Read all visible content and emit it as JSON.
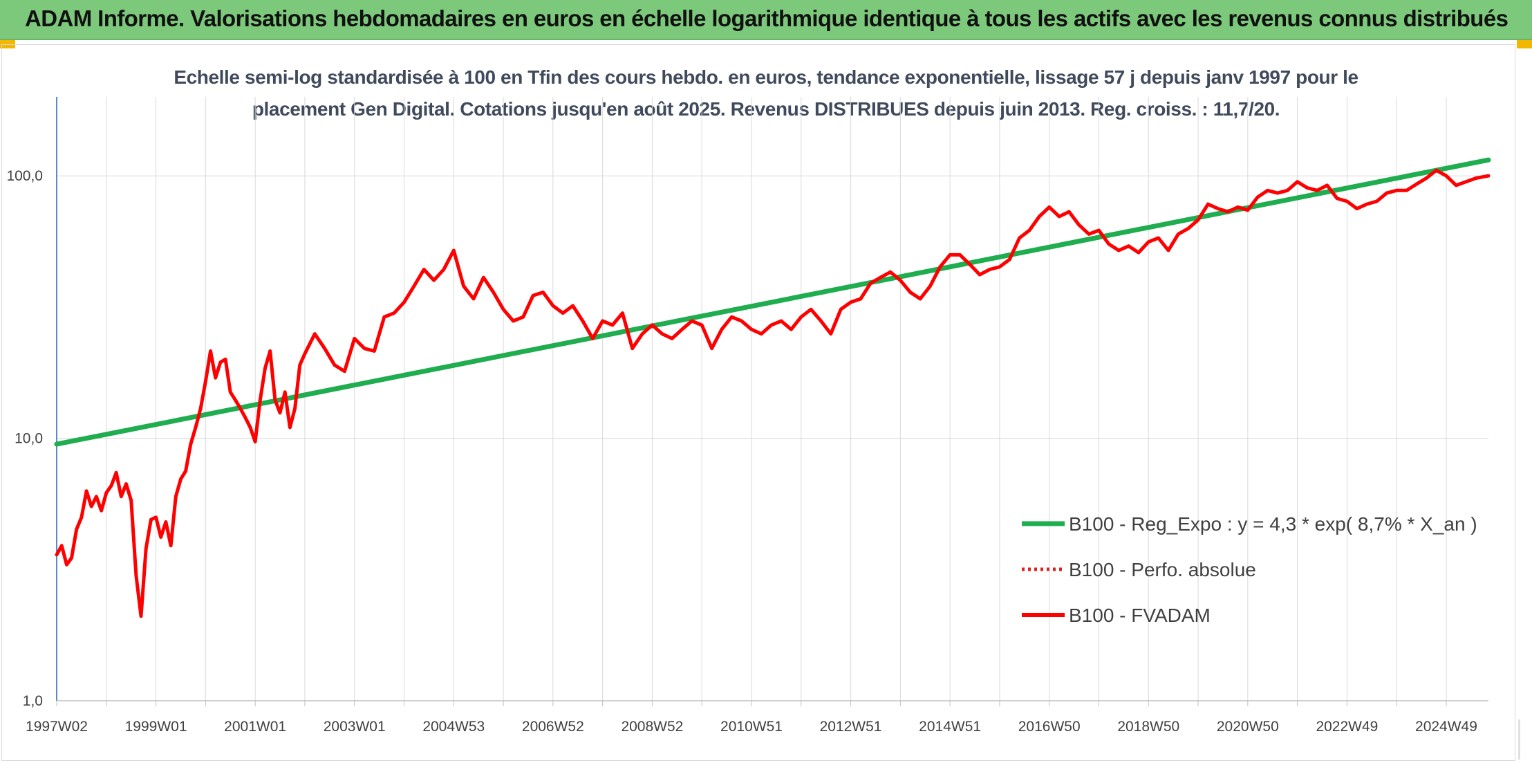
{
  "header": {
    "title": "ADAM Informe. Valorisations hebdomadaires en euros en échelle logarithmique identique à tous les actifs avec les revenus connus distribués"
  },
  "colors": {
    "header_bg": "#7dc97c",
    "regression": "#1fad4f",
    "fvadam": "#ff0000",
    "perfo": "#e0201e",
    "grid": "#d9d9d9",
    "axis": "#5b8ac7"
  },
  "chart_data": {
    "type": "line",
    "title_lines": [
      "Echelle semi-log standardisée à 100 en Tfin des cours hebdo. en euros, tendance exponentielle, lissage 57 j depuis janv 1997 pour le",
      "placement Gen Digital. Cotations jusqu'en août 2025. Revenus DISTRIBUES depuis juin 2013. Reg. croiss. : 11,7/20."
    ],
    "y_scale": "log",
    "ylim": [
      1,
      200
    ],
    "xlim": [
      1997.0,
      2025.85
    ],
    "y_ticks": [
      {
        "value": 1,
        "label": "1,0"
      },
      {
        "value": 10,
        "label": "10,0"
      },
      {
        "value": 100,
        "label": "100,0"
      }
    ],
    "x_ticks": [
      {
        "value": 1997.0,
        "label": "1997W02"
      },
      {
        "value": 1999.0,
        "label": "1999W01"
      },
      {
        "value": 2001.0,
        "label": "2001W01"
      },
      {
        "value": 2003.0,
        "label": "2003W01"
      },
      {
        "value": 2005.0,
        "label": "2004W53"
      },
      {
        "value": 2007.0,
        "label": "2006W52"
      },
      {
        "value": 2009.0,
        "label": "2008W52"
      },
      {
        "value": 2011.0,
        "label": "2010W51"
      },
      {
        "value": 2013.0,
        "label": "2012W51"
      },
      {
        "value": 2015.0,
        "label": "2014W51"
      },
      {
        "value": 2017.0,
        "label": "2016W50"
      },
      {
        "value": 2019.0,
        "label": "2018W50"
      },
      {
        "value": 2021.0,
        "label": "2020W50"
      },
      {
        "value": 2023.0,
        "label": "2022W49"
      },
      {
        "value": 2025.0,
        "label": "2024W49"
      }
    ],
    "legend_position": "right",
    "series": [
      {
        "name": "B100 - Reg_Expo : y = 4,3 * exp( 8,7% *  X_an )",
        "style": "solid-thick",
        "color": "#1fad4f",
        "x": [
          1997.0,
          2025.85
        ],
        "y": [
          9.5,
          115
        ]
      },
      {
        "name": "B100 - Perfo. absolue",
        "style": "dotted",
        "color": "#e0201e",
        "x": [],
        "y": []
      },
      {
        "name": "B100 - FVADAM",
        "style": "solid",
        "color": "#ff0000",
        "x": [
          1997.0,
          1997.1,
          1997.2,
          1997.3,
          1997.4,
          1997.5,
          1997.6,
          1997.7,
          1997.8,
          1997.9,
          1998.0,
          1998.1,
          1998.2,
          1998.3,
          1998.4,
          1998.5,
          1998.6,
          1998.7,
          1998.8,
          1998.9,
          1999.0,
          1999.1,
          1999.2,
          1999.3,
          1999.4,
          1999.5,
          1999.6,
          1999.7,
          1999.8,
          1999.9,
          2000.0,
          2000.1,
          2000.2,
          2000.3,
          2000.4,
          2000.5,
          2000.6,
          2000.7,
          2000.8,
          2000.9,
          2001.0,
          2001.1,
          2001.2,
          2001.3,
          2001.4,
          2001.5,
          2001.6,
          2001.7,
          2001.8,
          2001.9,
          2002.0,
          2002.2,
          2002.4,
          2002.6,
          2002.8,
          2003.0,
          2003.2,
          2003.4,
          2003.6,
          2003.8,
          2004.0,
          2004.2,
          2004.4,
          2004.6,
          2004.8,
          2005.0,
          2005.2,
          2005.4,
          2005.6,
          2005.8,
          2006.0,
          2006.2,
          2006.4,
          2006.6,
          2006.8,
          2007.0,
          2007.2,
          2007.4,
          2007.6,
          2007.8,
          2008.0,
          2008.2,
          2008.4,
          2008.6,
          2008.8,
          2009.0,
          2009.2,
          2009.4,
          2009.6,
          2009.8,
          2010.0,
          2010.2,
          2010.4,
          2010.6,
          2010.8,
          2011.0,
          2011.2,
          2011.4,
          2011.6,
          2011.8,
          2012.0,
          2012.2,
          2012.4,
          2012.6,
          2012.8,
          2013.0,
          2013.2,
          2013.4,
          2013.6,
          2013.8,
          2014.0,
          2014.2,
          2014.4,
          2014.6,
          2014.8,
          2015.0,
          2015.2,
          2015.4,
          2015.6,
          2015.8,
          2016.0,
          2016.2,
          2016.4,
          2016.6,
          2016.8,
          2017.0,
          2017.2,
          2017.4,
          2017.6,
          2017.8,
          2018.0,
          2018.2,
          2018.4,
          2018.6,
          2018.8,
          2019.0,
          2019.2,
          2019.4,
          2019.6,
          2019.8,
          2020.0,
          2020.2,
          2020.4,
          2020.6,
          2020.8,
          2021.0,
          2021.2,
          2021.4,
          2021.6,
          2021.8,
          2022.0,
          2022.2,
          2022.4,
          2022.6,
          2022.8,
          2023.0,
          2023.2,
          2023.4,
          2023.6,
          2023.8,
          2024.0,
          2024.2,
          2024.4,
          2024.6,
          2024.8,
          2025.0,
          2025.2,
          2025.4,
          2025.6,
          2025.85
        ],
        "y": [
          3.6,
          3.9,
          3.3,
          3.5,
          4.5,
          5.0,
          6.3,
          5.5,
          6.0,
          5.3,
          6.2,
          6.6,
          7.4,
          6.0,
          6.7,
          5.8,
          3.0,
          2.1,
          3.8,
          4.9,
          5.0,
          4.2,
          4.8,
          3.9,
          6.0,
          7.0,
          7.5,
          9.5,
          11.0,
          13.0,
          16.5,
          21.5,
          17.0,
          19.5,
          20.0,
          15.0,
          14.0,
          13.0,
          12.0,
          11.0,
          9.7,
          14.0,
          18.5,
          21.5,
          14.0,
          12.5,
          15.0,
          11.0,
          13.0,
          19.0,
          21.0,
          25.0,
          22.0,
          19.0,
          18.0,
          24.0,
          22.0,
          21.5,
          29.0,
          30.0,
          33.0,
          38.0,
          44.0,
          40.0,
          44.0,
          52.0,
          38.0,
          34.0,
          41.0,
          36.0,
          31.0,
          28.0,
          29.0,
          35.0,
          36.0,
          32.0,
          30.0,
          32.0,
          28.0,
          24.0,
          28.0,
          27.0,
          30.0,
          22.0,
          25.0,
          27.0,
          25.0,
          24.0,
          26.0,
          28.0,
          27.0,
          22.0,
          26.0,
          29.0,
          28.0,
          26.0,
          25.0,
          27.0,
          28.0,
          26.0,
          29.0,
          31.0,
          28.0,
          25.0,
          31.0,
          33.0,
          34.0,
          39.0,
          41.0,
          43.0,
          40.0,
          36.0,
          34.0,
          38.0,
          45.0,
          50.0,
          50.0,
          46.0,
          42.0,
          44.0,
          45.0,
          48.0,
          58.0,
          62.0,
          70.0,
          76.0,
          70.0,
          73.0,
          65.0,
          60.0,
          62.0,
          55.0,
          52.0,
          54.0,
          51.0,
          56.0,
          58.0,
          52.0,
          60.0,
          63.0,
          68.0,
          78.0,
          75.0,
          73.0,
          76.0,
          74.0,
          83.0,
          88.0,
          86.0,
          88.0,
          95.0,
          90.0,
          88.0,
          92.0,
          82.0,
          80.0,
          75.0,
          78.0,
          80.0,
          86.0,
          88.0,
          88.0,
          93.0,
          98.0,
          105.0,
          100.0,
          92.0,
          95.0,
          98.0,
          100.0
        ]
      }
    ]
  }
}
